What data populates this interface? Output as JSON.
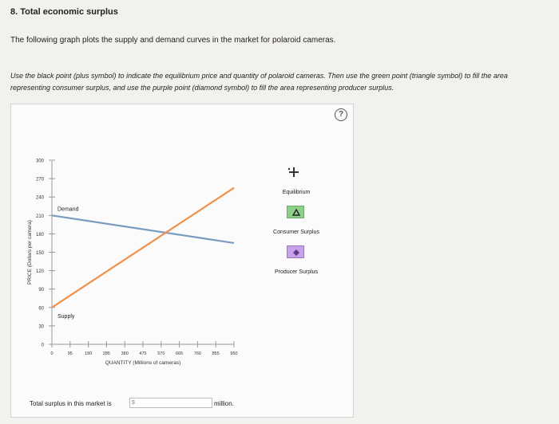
{
  "question": {
    "heading": "8. Total economic surplus",
    "intro": "The following graph plots the supply and demand curves in the market for polaroid cameras.",
    "instructions": "Use the black point (plus symbol) to indicate the equilibrium price and quantity of polaroid cameras. Then use the green point (triangle symbol) to fill the area representing consumer surplus, and use the purple point (diamond symbol) to fill the area representing producer surplus."
  },
  "help": {
    "icon": "question-icon",
    "glyph": "?"
  },
  "chart_data": {
    "type": "line",
    "xlabel": "QUANTITY (Millions of cameras)",
    "ylabel": "PRICE (Dollars per camera)",
    "xlim": [
      0,
      950
    ],
    "ylim": [
      0,
      300
    ],
    "x_ticks": [
      0,
      95,
      190,
      285,
      380,
      475,
      570,
      665,
      760,
      855,
      950
    ],
    "y_ticks": [
      0,
      30,
      60,
      90,
      120,
      150,
      180,
      210,
      240,
      270,
      300
    ],
    "series": [
      {
        "name": "Demand",
        "color": "#7a9cc0",
        "x": [
          0,
          950
        ],
        "y": [
          210,
          165
        ]
      },
      {
        "name": "Supply",
        "color": "#f0904a",
        "x": [
          0,
          950
        ],
        "y": [
          60,
          255
        ]
      }
    ]
  },
  "legend": {
    "equilibrium": {
      "label": "Equilibrium",
      "icon": "plus-icon",
      "color": "#222222"
    },
    "consumer_surplus": {
      "label": "Consumer Surplus",
      "icon": "triangle-icon",
      "color": "#8ed08a"
    },
    "producer_surplus": {
      "label": "Producer Surplus",
      "icon": "diamond-icon",
      "color": "#c9a1e8"
    }
  },
  "answer": {
    "label": "Total surplus in this market is",
    "prefix": "$",
    "value": "",
    "unit": "million."
  }
}
